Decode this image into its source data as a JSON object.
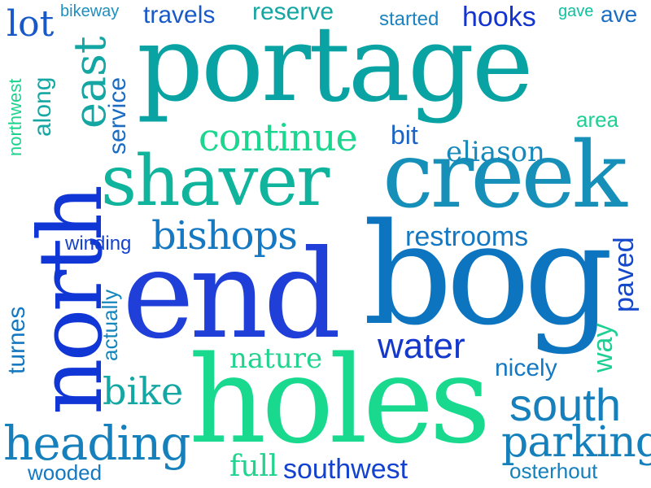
{
  "words": [
    {
      "text": "portage",
      "color": "#0aa3a3"
    },
    {
      "text": "end",
      "color": "#1f3fd8"
    },
    {
      "text": "bog",
      "color": "#0d74c0"
    },
    {
      "text": "holes",
      "color": "#18d98d"
    },
    {
      "text": "north",
      "color": "#1136d6"
    },
    {
      "text": "creek",
      "color": "#1690b8"
    },
    {
      "text": "shaver",
      "color": "#10b39c"
    },
    {
      "text": "continue",
      "color": "#1cd690"
    },
    {
      "text": "bishops",
      "color": "#1478c2"
    },
    {
      "text": "east",
      "color": "#14a6a2"
    },
    {
      "text": "lot",
      "color": "#1858c8"
    },
    {
      "text": "travels",
      "color": "#1858c8"
    },
    {
      "text": "reserve",
      "color": "#14a6a2"
    },
    {
      "text": "bikeway",
      "color": "#1f8ec0"
    },
    {
      "text": "started",
      "color": "#1b83bf"
    },
    {
      "text": "hooks",
      "color": "#1434cf"
    },
    {
      "text": "gave",
      "color": "#12c0a0"
    },
    {
      "text": "ave",
      "color": "#1a6ec4"
    },
    {
      "text": "along",
      "color": "#14a8a4"
    },
    {
      "text": "northwest",
      "color": "#1cd28e"
    },
    {
      "text": "service",
      "color": "#1a6cc4"
    },
    {
      "text": "bit",
      "color": "#1a64c6"
    },
    {
      "text": "area",
      "color": "#1ccf93"
    },
    {
      "text": "eliason",
      "color": "#1688bc"
    },
    {
      "text": "winding",
      "color": "#1442d0"
    },
    {
      "text": "restrooms",
      "color": "#1478c2"
    },
    {
      "text": "paved",
      "color": "#1448cc"
    },
    {
      "text": "turnes",
      "color": "#1478c2"
    },
    {
      "text": "actually",
      "color": "#1486be"
    },
    {
      "text": "nature",
      "color": "#20d48f"
    },
    {
      "text": "water",
      "color": "#1438cc"
    },
    {
      "text": "way",
      "color": "#1ccf93"
    },
    {
      "text": "nicely",
      "color": "#1478c2"
    },
    {
      "text": "bike",
      "color": "#14a6a2"
    },
    {
      "text": "south",
      "color": "#1680bc"
    },
    {
      "text": "heading",
      "color": "#1680bc"
    },
    {
      "text": "parking",
      "color": "#1680bc"
    },
    {
      "text": "full",
      "color": "#20d48f"
    },
    {
      "text": "southwest",
      "color": "#1442d0"
    },
    {
      "text": "wooded",
      "color": "#1478c2"
    },
    {
      "text": "osterhout",
      "color": "#1680bc"
    }
  ]
}
